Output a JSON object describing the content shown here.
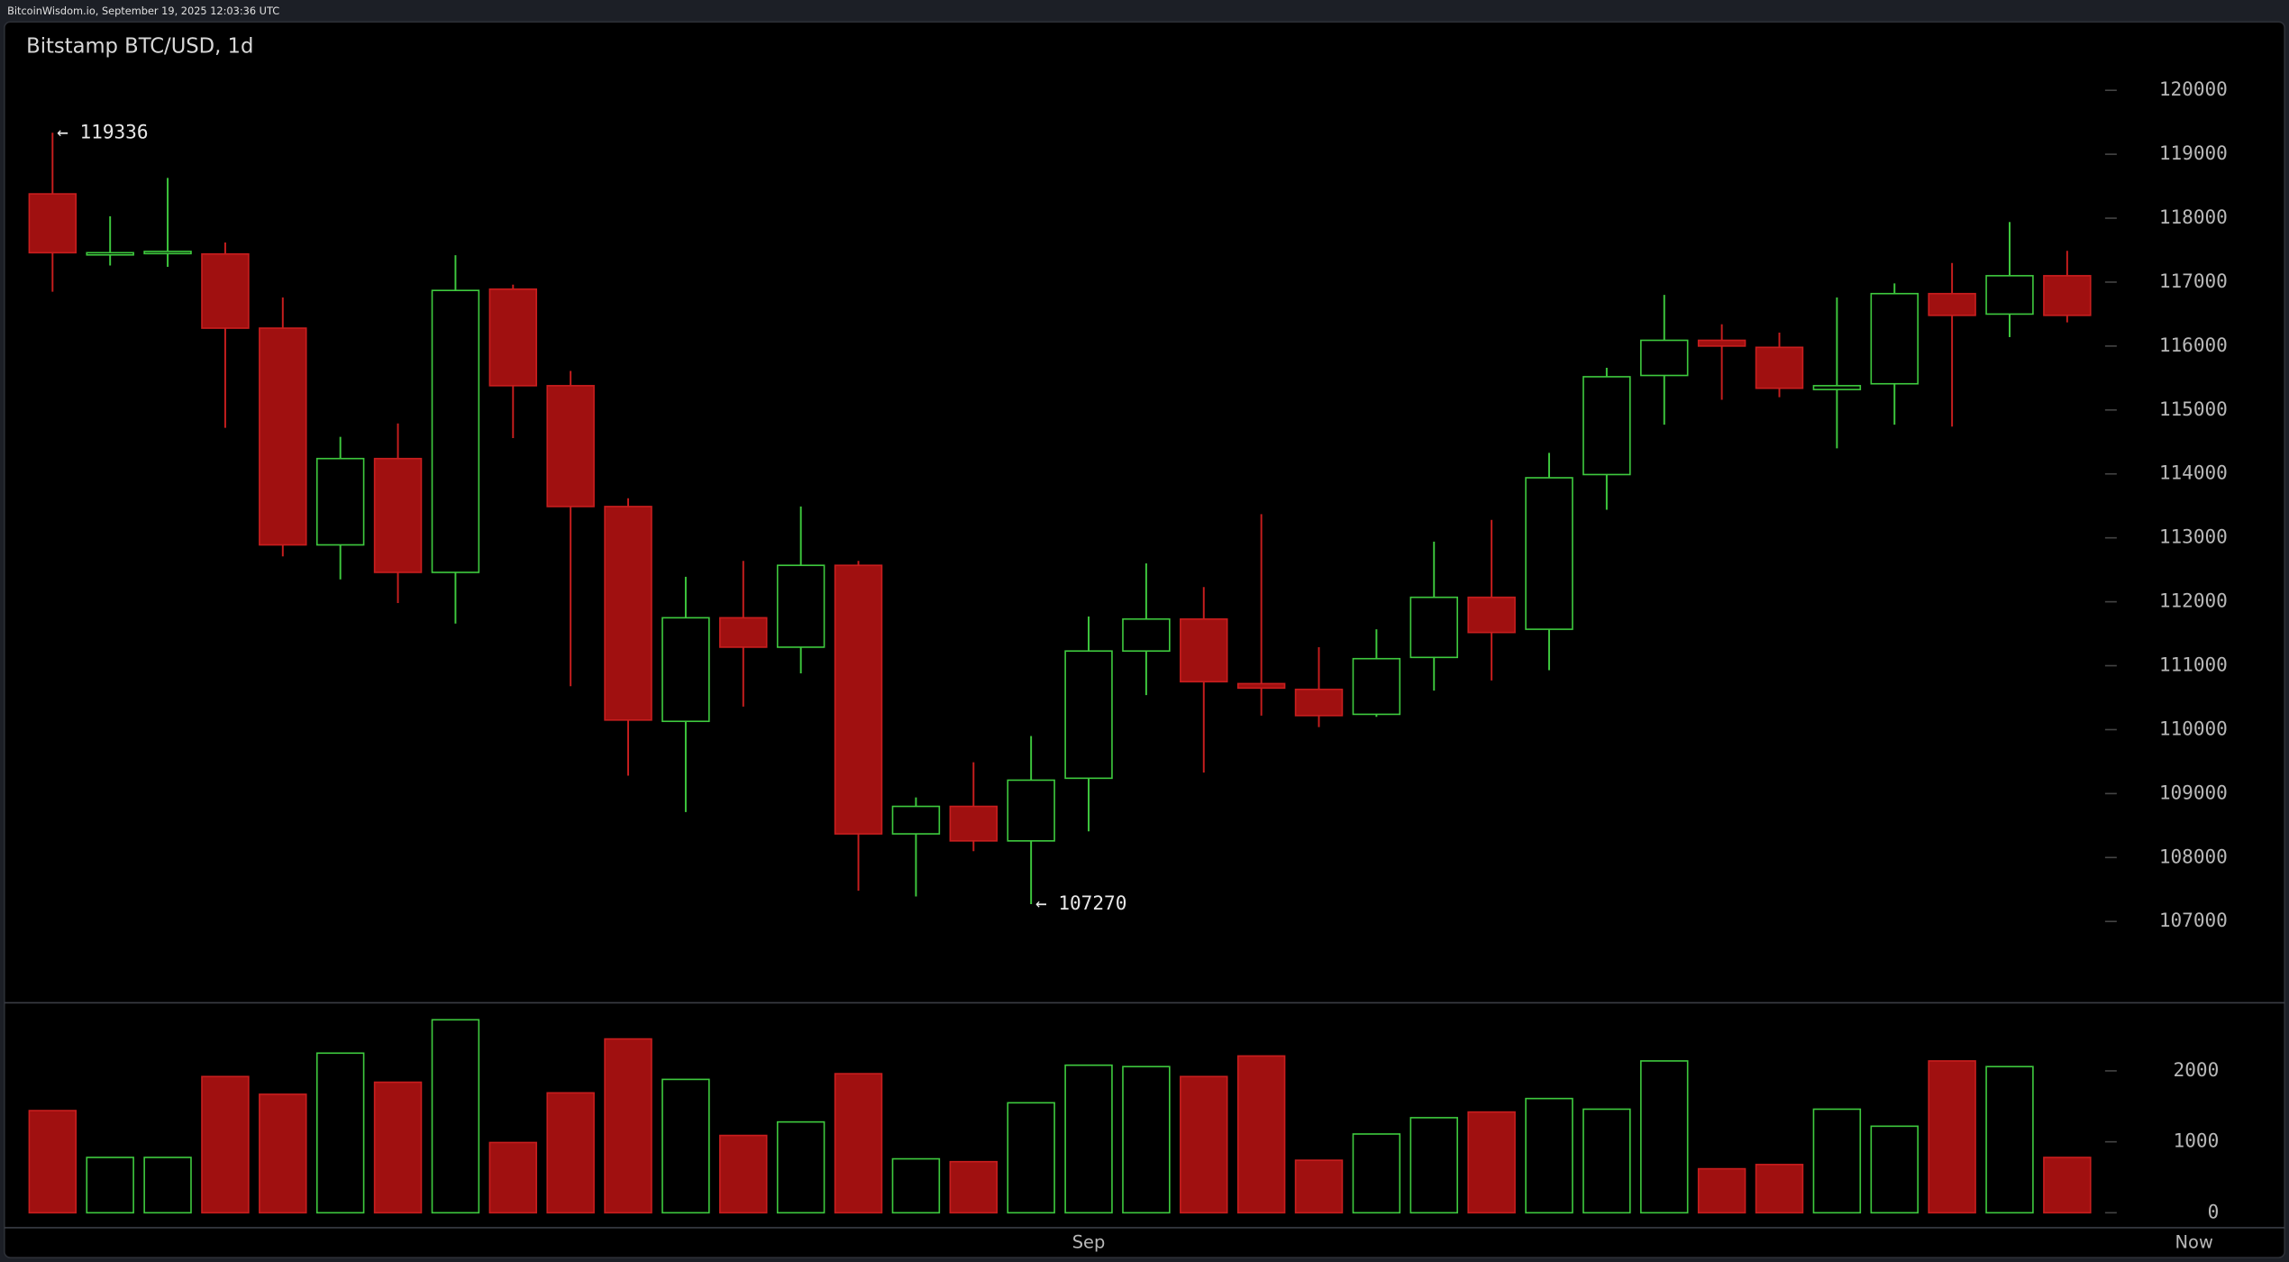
{
  "header": "BitcoinWisdom.io, September 19, 2025 12:03:36 UTC",
  "chart_data": {
    "type": "candlestick",
    "title": "Bitstamp BTC/USD, 1d",
    "categories": [
      null,
      null,
      null,
      null,
      null,
      null,
      null,
      null,
      null,
      null,
      null,
      null,
      null,
      null,
      null,
      null,
      null,
      null,
      "Sep",
      null,
      null,
      null,
      null,
      null,
      null,
      null,
      null,
      null,
      null,
      null,
      null,
      null,
      null,
      null,
      null,
      null
    ],
    "now_label": "Now",
    "open": [
      118380,
      117440,
      117460,
      117440,
      116280,
      112890,
      114240,
      112460,
      116890,
      115380,
      113490,
      110130,
      111750,
      111290,
      112570,
      108370,
      108800,
      108260,
      109240,
      111230,
      111730,
      110720,
      110630,
      110240,
      111130,
      112070,
      111570,
      113990,
      115540,
      116090,
      115980,
      115320,
      115410,
      116820,
      116500,
      117100
    ],
    "high": [
      119336,
      118030,
      118630,
      117620,
      116760,
      114580,
      114790,
      117420,
      116960,
      115610,
      113620,
      112390,
      112640,
      113490,
      112640,
      108940,
      109490,
      109900,
      111770,
      112600,
      112230,
      113370,
      111290,
      111570,
      112940,
      113280,
      114330,
      115660,
      116800,
      116340,
      116210,
      116760,
      116980,
      117300,
      117940,
      117490
    ],
    "low": [
      116850,
      117260,
      117240,
      114720,
      112710,
      112350,
      111980,
      111660,
      114560,
      110680,
      109280,
      108710,
      110360,
      110880,
      107480,
      107390,
      108100,
      107270,
      108410,
      110540,
      109330,
      110220,
      110040,
      110200,
      110610,
      110770,
      110930,
      113440,
      114770,
      115160,
      115200,
      114400,
      114770,
      114740,
      116140,
      116370
    ],
    "close": [
      117460,
      117460,
      117480,
      116280,
      112890,
      114240,
      112460,
      116870,
      115380,
      113490,
      110150,
      111750,
      111290,
      112570,
      108370,
      108800,
      108260,
      109210,
      111230,
      111730,
      110750,
      110650,
      110220,
      111110,
      112070,
      111520,
      113940,
      115520,
      116090,
      116000,
      115340,
      115380,
      116820,
      116480,
      117100,
      116480
    ],
    "volume": [
      1440,
      780,
      780,
      1920,
      1670,
      2250,
      1840,
      2720,
      990,
      1690,
      2450,
      1880,
      1090,
      1280,
      1960,
      760,
      720,
      1550,
      2080,
      2060,
      1920,
      2210,
      740,
      1110,
      1340,
      1420,
      1610,
      1460,
      2140,
      620,
      680,
      1460,
      1220,
      2140,
      2060,
      780
    ],
    "up_color": "#3ec93e",
    "down_color": "#a01010",
    "ylim": [
      105740,
      121070
    ],
    "yticks": [
      107000,
      108000,
      109000,
      110000,
      111000,
      112000,
      113000,
      114000,
      115000,
      116000,
      117000,
      118000,
      119000,
      120000
    ],
    "volume_ylim": [
      -200,
      2950
    ],
    "volume_yticks": [
      0,
      1000,
      2000
    ],
    "annotations": [
      "← 119336",
      "← 107270"
    ]
  }
}
